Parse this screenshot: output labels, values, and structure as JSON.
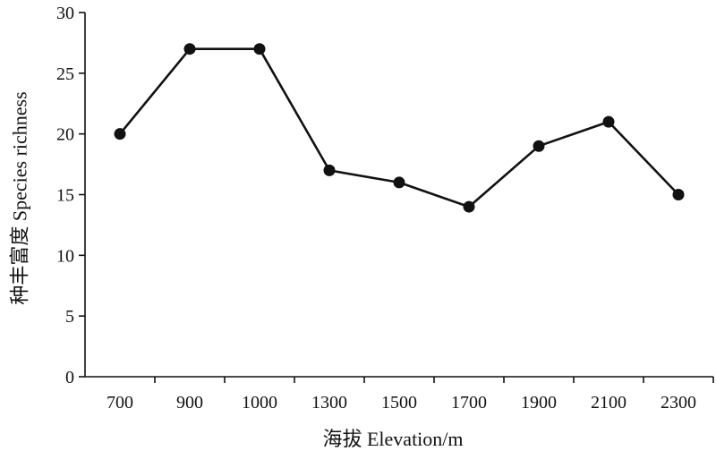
{
  "chart_data": {
    "type": "line",
    "xlabel": "海拔 Elevation/m",
    "ylabel": "种丰富度 Species richness",
    "categories": [
      "700",
      "900",
      "1000",
      "1300",
      "1500",
      "1700",
      "1900",
      "2100",
      "2300"
    ],
    "series": [
      {
        "values": [
          20,
          27,
          27,
          17,
          16,
          14,
          19,
          21,
          15
        ]
      }
    ],
    "ylim": [
      0,
      30
    ],
    "yticks": [
      0,
      5,
      10,
      15,
      20,
      25,
      30
    ],
    "grid": false,
    "legend": "none"
  }
}
